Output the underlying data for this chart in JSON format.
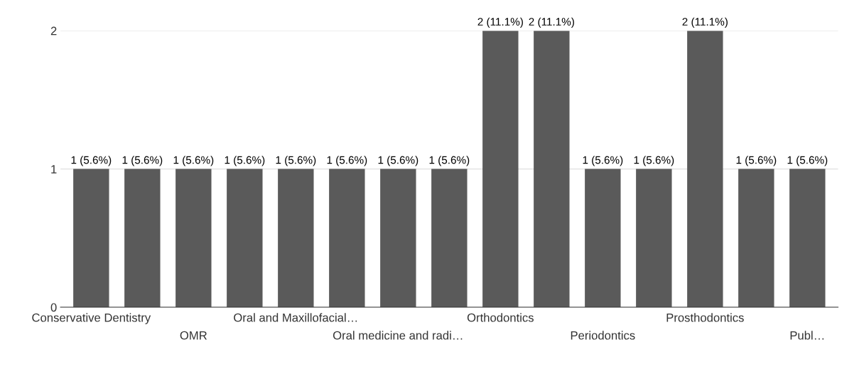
{
  "chart_data": {
    "type": "bar",
    "categories": [
      "Conservative Dentistry",
      null,
      "OMR",
      null,
      "Oral and Maxillofacial…",
      null,
      "Oral medicine and radi…",
      null,
      "Orthodontics",
      null,
      "Periodontics",
      null,
      "Prosthodontics",
      null,
      "Publ…"
    ],
    "values": [
      1,
      1,
      1,
      1,
      1,
      1,
      1,
      1,
      2,
      2,
      1,
      1,
      2,
      1,
      1
    ],
    "value_labels": [
      "1 (5.6%)",
      "1 (5.6%)",
      "1 (5.6%)",
      "1 (5.6%)",
      "1 (5.6%)",
      "1 (5.6%)",
      "1 (5.6%)",
      "1 (5.6%)",
      "2 (11.1%)",
      "2 (11.1%)",
      "1 (5.6%)",
      "1 (5.6%)",
      "2 (11.1%)",
      "1 (5.6%)",
      "1 (5.6%)"
    ],
    "color": "#5a5a5a",
    "ylim": [
      0,
      2
    ],
    "yticks": [
      0,
      1,
      2
    ],
    "grid": "y"
  }
}
